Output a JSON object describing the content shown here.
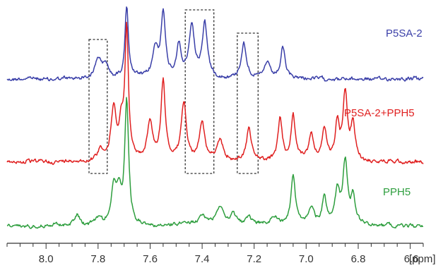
{
  "chart_data": {
    "type": "line",
    "title": "",
    "xlabel": "[ppm]",
    "xlim": [
      8.15,
      6.55
    ],
    "x_reversed": true,
    "x_ticks": [
      "8.0",
      "7.8",
      "7.6",
      "7.4",
      "7.2",
      "7.0",
      "6.8",
      "6.6"
    ],
    "y_visible": false,
    "grid": false,
    "series": [
      {
        "name": "P5SA-2",
        "color": "#3a3fa8",
        "peaks": [
          {
            "x": 7.8,
            "h": 0.3,
            "w": 0.014
          },
          {
            "x": 7.77,
            "h": 0.18,
            "w": 0.012
          },
          {
            "x": 7.69,
            "h": 1.0,
            "w": 0.008
          },
          {
            "x": 7.58,
            "h": 0.4,
            "w": 0.012
          },
          {
            "x": 7.55,
            "h": 0.92,
            "w": 0.01
          },
          {
            "x": 7.49,
            "h": 0.45,
            "w": 0.01
          },
          {
            "x": 7.44,
            "h": 0.72,
            "w": 0.012
          },
          {
            "x": 7.39,
            "h": 0.76,
            "w": 0.012
          },
          {
            "x": 7.24,
            "h": 0.48,
            "w": 0.012
          },
          {
            "x": 7.15,
            "h": 0.22,
            "w": 0.012
          },
          {
            "x": 7.09,
            "h": 0.42,
            "w": 0.01
          }
        ]
      },
      {
        "name": "P5SA-2+PPH5",
        "color": "#e02020",
        "peaks": [
          {
            "x": 7.79,
            "h": 0.1,
            "w": 0.012
          },
          {
            "x": 7.74,
            "h": 0.4,
            "w": 0.012
          },
          {
            "x": 7.71,
            "h": 0.25,
            "w": 0.01
          },
          {
            "x": 7.69,
            "h": 1.0,
            "w": 0.008
          },
          {
            "x": 7.6,
            "h": 0.3,
            "w": 0.012
          },
          {
            "x": 7.55,
            "h": 0.62,
            "w": 0.01
          },
          {
            "x": 7.47,
            "h": 0.45,
            "w": 0.012
          },
          {
            "x": 7.4,
            "h": 0.3,
            "w": 0.012
          },
          {
            "x": 7.33,
            "h": 0.15,
            "w": 0.015
          },
          {
            "x": 7.22,
            "h": 0.26,
            "w": 0.012
          },
          {
            "x": 7.1,
            "h": 0.33,
            "w": 0.01
          },
          {
            "x": 7.05,
            "h": 0.35,
            "w": 0.01
          },
          {
            "x": 6.98,
            "h": 0.2,
            "w": 0.012
          },
          {
            "x": 6.93,
            "h": 0.24,
            "w": 0.01
          },
          {
            "x": 6.88,
            "h": 0.3,
            "w": 0.01
          },
          {
            "x": 6.85,
            "h": 0.52,
            "w": 0.01
          },
          {
            "x": 6.82,
            "h": 0.28,
            "w": 0.01
          }
        ]
      },
      {
        "name": "PPH5",
        "color": "#2e9e3e",
        "peaks": [
          {
            "x": 7.88,
            "h": 0.09,
            "w": 0.012
          },
          {
            "x": 7.8,
            "h": 0.06,
            "w": 0.015
          },
          {
            "x": 7.74,
            "h": 0.3,
            "w": 0.012
          },
          {
            "x": 7.72,
            "h": 0.22,
            "w": 0.01
          },
          {
            "x": 7.69,
            "h": 1.0,
            "w": 0.009
          },
          {
            "x": 7.4,
            "h": 0.08,
            "w": 0.02
          },
          {
            "x": 7.33,
            "h": 0.14,
            "w": 0.018
          },
          {
            "x": 7.28,
            "h": 0.08,
            "w": 0.015
          },
          {
            "x": 7.22,
            "h": 0.06,
            "w": 0.015
          },
          {
            "x": 7.12,
            "h": 0.07,
            "w": 0.015
          },
          {
            "x": 7.05,
            "h": 0.4,
            "w": 0.01
          },
          {
            "x": 6.98,
            "h": 0.15,
            "w": 0.012
          },
          {
            "x": 6.93,
            "h": 0.22,
            "w": 0.01
          },
          {
            "x": 6.88,
            "h": 0.28,
            "w": 0.01
          },
          {
            "x": 6.85,
            "h": 0.5,
            "w": 0.011
          },
          {
            "x": 6.82,
            "h": 0.22,
            "w": 0.01
          }
        ]
      }
    ],
    "highlight_regions": [
      [
        7.835,
        7.765
      ],
      [
        7.465,
        7.355
      ],
      [
        7.265,
        7.185
      ]
    ]
  }
}
